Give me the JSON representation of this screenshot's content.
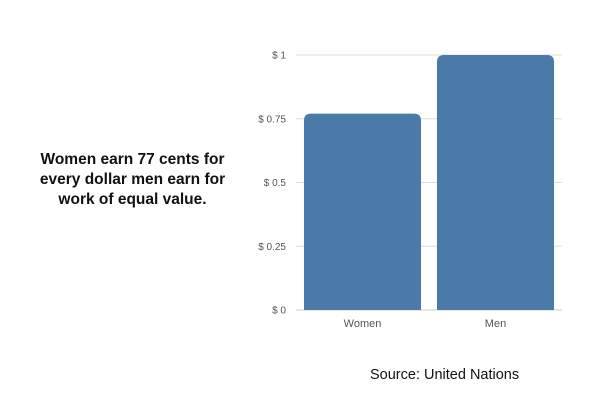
{
  "caption": "Women earn 77 cents for every dollar men earn for work of equal value.",
  "source": "Source: United Nations",
  "colors": {
    "bar": "#4a7aa8",
    "grid": "#dddddd",
    "axis": "#cccccc"
  },
  "chart_data": {
    "type": "bar",
    "categories": [
      "Women",
      "Men"
    ],
    "values": [
      0.77,
      1.0
    ],
    "ylim": [
      0,
      1
    ],
    "yticks": [
      {
        "value": 0,
        "label": "$ 0"
      },
      {
        "value": 0.25,
        "label": "$ 0.25"
      },
      {
        "value": 0.5,
        "label": "$ 0.5"
      },
      {
        "value": 0.75,
        "label": "$ 0.75"
      },
      {
        "value": 1,
        "label": "$ 1"
      }
    ],
    "grid": true,
    "legend": "none",
    "title": "",
    "xlabel": "",
    "ylabel": ""
  }
}
